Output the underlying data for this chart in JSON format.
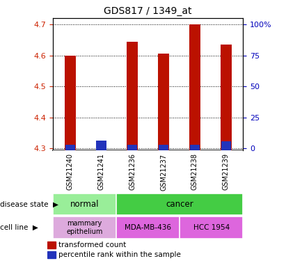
{
  "title": "GDS817 / 1349_at",
  "samples": [
    "GSM21240",
    "GSM21241",
    "GSM21236",
    "GSM21237",
    "GSM21238",
    "GSM21239"
  ],
  "red_values": [
    4.6,
    4.302,
    4.645,
    4.607,
    4.7,
    4.635
  ],
  "blue_values": [
    4.313,
    4.326,
    4.313,
    4.313,
    4.313,
    4.323
  ],
  "ylim_min": 4.295,
  "ylim_max": 4.72,
  "yticks": [
    4.3,
    4.4,
    4.5,
    4.6,
    4.7
  ],
  "right_ytick_labels": [
    "0",
    "25",
    "50",
    "75",
    "100%"
  ],
  "right_ytick_positions": [
    4.3,
    4.4,
    4.5,
    4.6,
    4.7
  ],
  "bar_width": 0.35,
  "red_color": "#bb1100",
  "blue_color": "#2233bb",
  "tick_color_left": "#cc2200",
  "tick_color_right": "#0000bb",
  "normal_color": "#99ee99",
  "cancer_color": "#44cc44",
  "mammary_color": "#ddaadd",
  "mda_color": "#dd66dd",
  "hcc_color": "#dd66dd",
  "gray_color": "#cccccc",
  "white": "#ffffff"
}
